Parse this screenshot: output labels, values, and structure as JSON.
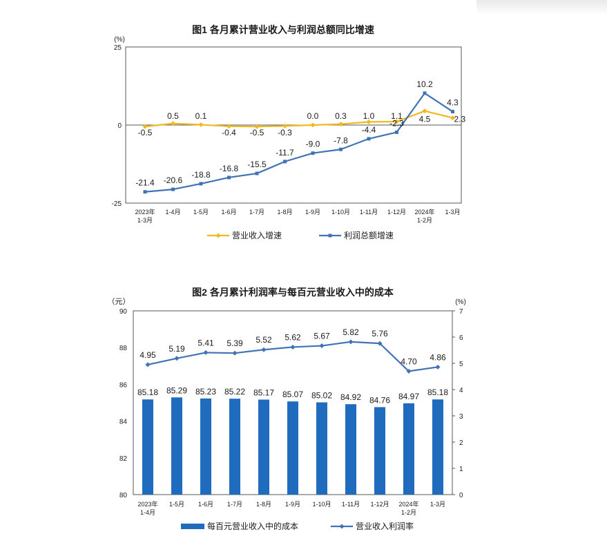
{
  "chart_data": [
    {
      "type": "line",
      "title": "图1  各月累计营业收入与利润总额同比增速",
      "yunit": "(%)",
      "ylim": [
        -25,
        25
      ],
      "yticks": [
        "25",
        "0",
        "-25"
      ],
      "categories": [
        [
          "2023年",
          "1-3月"
        ],
        [
          "1-4月"
        ],
        [
          "1-5月"
        ],
        [
          "1-6月"
        ],
        [
          "1-7月"
        ],
        [
          "1-8月"
        ],
        [
          "1-9月"
        ],
        [
          "1-10月"
        ],
        [
          "1-11月"
        ],
        [
          "1-12月"
        ],
        [
          "2024年",
          "1-2月"
        ],
        [
          "1-3月"
        ]
      ],
      "series": [
        {
          "name": "营业收入增速",
          "color": "#f2b91e",
          "values": [
            -0.5,
            0.5,
            0.1,
            -0.4,
            -0.5,
            -0.3,
            0.0,
            0.3,
            1.0,
            1.1,
            4.5,
            2.3
          ],
          "labels": [
            "-0.5",
            "0.5",
            "0.1",
            "-0.4",
            "-0.5",
            "-0.3",
            "0.0",
            "0.3",
            "1.0",
            "1.1",
            "4.5",
            "2.3"
          ]
        },
        {
          "name": "利润总额增速",
          "color": "#3f73b6",
          "values": [
            -21.4,
            -20.6,
            -18.8,
            -16.8,
            -15.5,
            -11.7,
            -9.0,
            -7.8,
            -4.4,
            -2.3,
            10.2,
            4.3
          ],
          "labels": [
            "-21.4",
            "-20.6",
            "-18.8",
            "-16.8",
            "-15.5",
            "-11.7",
            "-9.0",
            "-7.8",
            "-4.4",
            "-2.3",
            "10.2",
            "4.3"
          ]
        }
      ],
      "legend": "bottom"
    },
    {
      "type": "bar+line",
      "title": "图2  各月累计利润率与每百元营业收入中的成本",
      "y1unit": "（元）",
      "y2unit": "(%)",
      "y1lim": [
        80,
        90
      ],
      "y1ticks": [
        "90",
        "88",
        "86",
        "84",
        "82",
        "80"
      ],
      "y2lim": [
        0,
        7
      ],
      "y2ticks": [
        "7",
        "6",
        "5",
        "4",
        "3",
        "2",
        "1",
        "0"
      ],
      "categories": [
        [
          "2023年",
          "1-4月"
        ],
        [
          "1-5月"
        ],
        [
          "1-6月"
        ],
        [
          "1-7月"
        ],
        [
          "1-8月"
        ],
        [
          "1-9月"
        ],
        [
          "1-10月"
        ],
        [
          "1-11月"
        ],
        [
          "1-12月"
        ],
        [
          "2024年",
          "1-2月"
        ],
        [
          "1-3月"
        ]
      ],
      "series": [
        {
          "name": "每百元营业收入中的成本",
          "type": "bar",
          "axis": "left",
          "color": "#1f6cbf",
          "values": [
            85.18,
            85.29,
            85.23,
            85.22,
            85.17,
            85.07,
            85.02,
            84.92,
            84.76,
            84.97,
            85.18
          ],
          "labels": [
            "85.18",
            "85.29",
            "85.23",
            "85.22",
            "85.17",
            "85.07",
            "85.02",
            "84.92",
            "84.76",
            "84.97",
            "85.18"
          ]
        },
        {
          "name": "营业收入利润率",
          "type": "line",
          "axis": "right",
          "color": "#3f73b6",
          "values": [
            4.95,
            5.19,
            5.41,
            5.39,
            5.52,
            5.62,
            5.67,
            5.82,
            5.76,
            4.7,
            4.86
          ],
          "labels": [
            "4.95",
            "5.19",
            "5.41",
            "5.39",
            "5.52",
            "5.62",
            "5.67",
            "5.82",
            "5.76",
            "4.70",
            "4.86"
          ]
        }
      ],
      "legend": "bottom"
    }
  ]
}
